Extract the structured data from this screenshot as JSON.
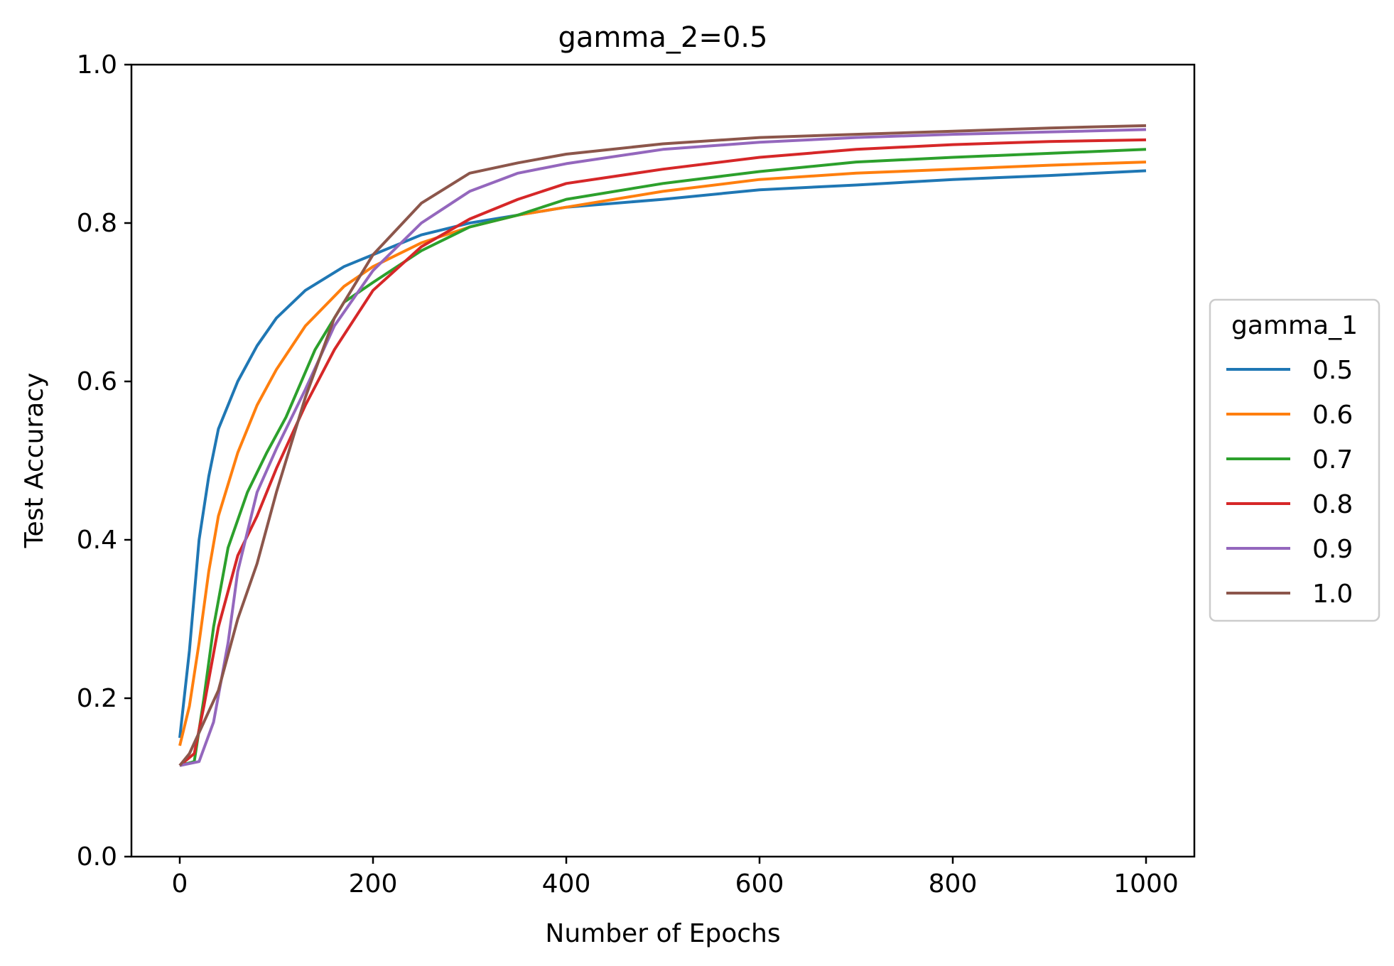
{
  "chart_data": {
    "type": "line",
    "title": "gamma_2=0.5",
    "xlabel": "Number of Epochs",
    "ylabel": "Test Accuracy",
    "xlim": [
      -50,
      1050
    ],
    "ylim": [
      0.0,
      1.0
    ],
    "x_ticks": [
      0,
      200,
      400,
      600,
      800,
      1000
    ],
    "x_tick_labels": [
      "0",
      "200",
      "400",
      "600",
      "800",
      "1000"
    ],
    "y_ticks": [
      0.0,
      0.2,
      0.4,
      0.6,
      0.8,
      1.0
    ],
    "y_tick_labels": [
      "0.0",
      "0.2",
      "0.4",
      "0.6",
      "0.8",
      "1.0"
    ],
    "grid": false,
    "legend": {
      "title": "gamma_1",
      "placement": "outside right"
    },
    "series": [
      {
        "name": "0.5",
        "color": "#1f77b4",
        "points": [
          [
            0,
            0.15
          ],
          [
            10,
            0.26
          ],
          [
            20,
            0.4
          ],
          [
            30,
            0.48
          ],
          [
            40,
            0.54
          ],
          [
            60,
            0.6
          ],
          [
            80,
            0.645
          ],
          [
            100,
            0.68
          ],
          [
            130,
            0.715
          ],
          [
            170,
            0.745
          ],
          [
            200,
            0.76
          ],
          [
            250,
            0.785
          ],
          [
            300,
            0.8
          ],
          [
            350,
            0.81
          ],
          [
            400,
            0.82
          ],
          [
            500,
            0.83
          ],
          [
            600,
            0.842
          ],
          [
            700,
            0.848
          ],
          [
            800,
            0.855
          ],
          [
            900,
            0.86
          ],
          [
            1000,
            0.866
          ]
        ]
      },
      {
        "name": "0.6",
        "color": "#ff7f0e",
        "points": [
          [
            0,
            0.14
          ],
          [
            10,
            0.19
          ],
          [
            20,
            0.27
          ],
          [
            30,
            0.36
          ],
          [
            40,
            0.43
          ],
          [
            60,
            0.51
          ],
          [
            80,
            0.57
          ],
          [
            100,
            0.615
          ],
          [
            130,
            0.67
          ],
          [
            170,
            0.72
          ],
          [
            200,
            0.745
          ],
          [
            250,
            0.775
          ],
          [
            300,
            0.795
          ],
          [
            350,
            0.81
          ],
          [
            400,
            0.82
          ],
          [
            500,
            0.84
          ],
          [
            600,
            0.855
          ],
          [
            700,
            0.863
          ],
          [
            800,
            0.868
          ],
          [
            900,
            0.873
          ],
          [
            1000,
            0.877
          ]
        ]
      },
      {
        "name": "0.7",
        "color": "#2ca02c",
        "points": [
          [
            0,
            0.115
          ],
          [
            15,
            0.12
          ],
          [
            25,
            0.2
          ],
          [
            35,
            0.29
          ],
          [
            50,
            0.39
          ],
          [
            70,
            0.46
          ],
          [
            90,
            0.51
          ],
          [
            110,
            0.555
          ],
          [
            140,
            0.64
          ],
          [
            170,
            0.7
          ],
          [
            200,
            0.725
          ],
          [
            250,
            0.765
          ],
          [
            300,
            0.795
          ],
          [
            350,
            0.81
          ],
          [
            400,
            0.83
          ],
          [
            500,
            0.85
          ],
          [
            600,
            0.865
          ],
          [
            700,
            0.877
          ],
          [
            800,
            0.883
          ],
          [
            900,
            0.888
          ],
          [
            1000,
            0.893
          ]
        ]
      },
      {
        "name": "0.8",
        "color": "#d62728",
        "points": [
          [
            0,
            0.115
          ],
          [
            15,
            0.13
          ],
          [
            25,
            0.19
          ],
          [
            40,
            0.29
          ],
          [
            60,
            0.38
          ],
          [
            80,
            0.43
          ],
          [
            100,
            0.49
          ],
          [
            130,
            0.57
          ],
          [
            160,
            0.64
          ],
          [
            200,
            0.715
          ],
          [
            250,
            0.77
          ],
          [
            300,
            0.805
          ],
          [
            350,
            0.83
          ],
          [
            400,
            0.85
          ],
          [
            500,
            0.868
          ],
          [
            600,
            0.883
          ],
          [
            700,
            0.893
          ],
          [
            800,
            0.899
          ],
          [
            900,
            0.903
          ],
          [
            1000,
            0.905
          ]
        ]
      },
      {
        "name": "0.9",
        "color": "#9467bd",
        "points": [
          [
            0,
            0.115
          ],
          [
            20,
            0.12
          ],
          [
            35,
            0.17
          ],
          [
            50,
            0.27
          ],
          [
            60,
            0.36
          ],
          [
            80,
            0.46
          ],
          [
            100,
            0.515
          ],
          [
            130,
            0.59
          ],
          [
            160,
            0.67
          ],
          [
            200,
            0.74
          ],
          [
            250,
            0.8
          ],
          [
            300,
            0.84
          ],
          [
            350,
            0.863
          ],
          [
            400,
            0.875
          ],
          [
            500,
            0.893
          ],
          [
            600,
            0.902
          ],
          [
            700,
            0.908
          ],
          [
            800,
            0.912
          ],
          [
            900,
            0.915
          ],
          [
            1000,
            0.918
          ]
        ]
      },
      {
        "name": "1.0",
        "color": "#8c564b",
        "points": [
          [
            0,
            0.115
          ],
          [
            10,
            0.13
          ],
          [
            25,
            0.17
          ],
          [
            40,
            0.21
          ],
          [
            60,
            0.3
          ],
          [
            80,
            0.37
          ],
          [
            100,
            0.46
          ],
          [
            130,
            0.58
          ],
          [
            160,
            0.68
          ],
          [
            200,
            0.76
          ],
          [
            250,
            0.825
          ],
          [
            300,
            0.863
          ],
          [
            350,
            0.876
          ],
          [
            400,
            0.887
          ],
          [
            500,
            0.9
          ],
          [
            600,
            0.908
          ],
          [
            700,
            0.912
          ],
          [
            800,
            0.916
          ],
          [
            900,
            0.92
          ],
          [
            1000,
            0.923
          ]
        ]
      }
    ]
  }
}
